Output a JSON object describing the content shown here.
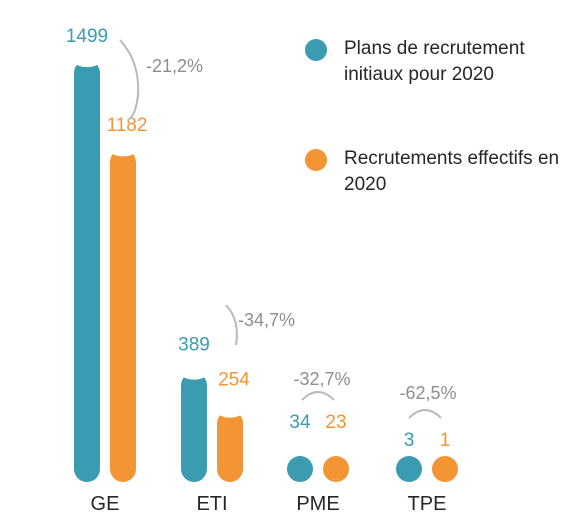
{
  "colors": {
    "plan": "#3a9bb1",
    "actual": "#f39535",
    "delta": "#8d8d8d",
    "arc": "#b9b9b9",
    "category": "#262626"
  },
  "legend": [
    {
      "label": "Plans de recrutement initiaux pour 2020",
      "color": "#3a9bb1"
    },
    {
      "label": "Recrutements effectifs en 2020",
      "color": "#f39535"
    }
  ],
  "chart_data": {
    "type": "bar",
    "categories": [
      "GE",
      "ETI",
      "PME",
      "TPE"
    ],
    "series": [
      {
        "name": "Plans de recrutement initiaux pour 2020",
        "values": [
          1499,
          389,
          34,
          3
        ]
      },
      {
        "name": "Recrutements effectifs en 2020",
        "values": [
          1182,
          254,
          23,
          1
        ]
      }
    ],
    "value_labels": [
      [
        "1499",
        "389",
        "34",
        "3"
      ],
      [
        "1182",
        "254",
        "23",
        "1"
      ]
    ],
    "changes": [
      "-21,2%",
      "-34,7%",
      "-32,7%",
      "-62,5%"
    ],
    "legend_position": "top-right",
    "grid": false
  }
}
